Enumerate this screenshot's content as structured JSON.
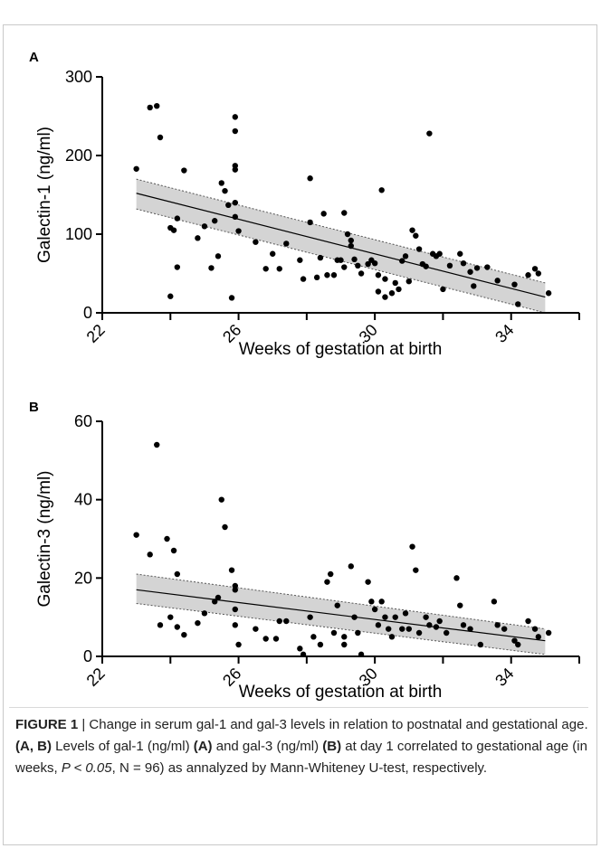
{
  "chart_data": [
    {
      "panel": "A",
      "type": "scatter",
      "xlabel": "Weeks of gestation at birth",
      "ylabel": "Galectin-1 (ng/ml)",
      "xlim": [
        22,
        36
      ],
      "ylim": [
        0,
        300
      ],
      "xticks": [
        "22",
        "26",
        "30",
        "34"
      ],
      "yticks": [
        "0",
        "100",
        "200",
        "300"
      ],
      "points": [
        [
          23.0,
          183
        ],
        [
          23.4,
          261
        ],
        [
          23.6,
          263
        ],
        [
          23.7,
          223
        ],
        [
          24.0,
          108
        ],
        [
          24.1,
          105
        ],
        [
          24.2,
          120
        ],
        [
          24.2,
          58
        ],
        [
          24.4,
          181
        ],
        [
          24.0,
          21
        ],
        [
          24.8,
          95
        ],
        [
          25.0,
          110
        ],
        [
          25.2,
          57
        ],
        [
          25.3,
          117
        ],
        [
          25.4,
          72
        ],
        [
          25.5,
          165
        ],
        [
          25.6,
          155
        ],
        [
          25.7,
          137
        ],
        [
          25.8,
          19
        ],
        [
          25.9,
          249
        ],
        [
          25.9,
          231
        ],
        [
          25.9,
          187
        ],
        [
          25.9,
          182
        ],
        [
          25.9,
          140
        ],
        [
          25.9,
          122
        ],
        [
          26.0,
          104
        ],
        [
          26.5,
          90
        ],
        [
          26.8,
          56
        ],
        [
          27.0,
          75
        ],
        [
          27.2,
          56
        ],
        [
          27.4,
          88
        ],
        [
          27.8,
          67
        ],
        [
          27.9,
          43
        ],
        [
          28.1,
          115
        ],
        [
          28.1,
          171
        ],
        [
          28.3,
          45
        ],
        [
          28.4,
          70
        ],
        [
          28.5,
          126
        ],
        [
          28.6,
          48
        ],
        [
          28.8,
          48
        ],
        [
          28.9,
          67
        ],
        [
          29.0,
          67
        ],
        [
          29.1,
          58
        ],
        [
          29.1,
          127
        ],
        [
          29.2,
          100
        ],
        [
          29.3,
          92
        ],
        [
          29.3,
          85
        ],
        [
          29.4,
          68
        ],
        [
          29.5,
          60
        ],
        [
          29.6,
          50
        ],
        [
          29.8,
          62
        ],
        [
          29.9,
          67
        ],
        [
          30.0,
          63
        ],
        [
          30.1,
          48
        ],
        [
          30.1,
          27
        ],
        [
          30.2,
          156
        ],
        [
          30.3,
          43
        ],
        [
          30.3,
          20
        ],
        [
          30.5,
          25
        ],
        [
          30.6,
          38
        ],
        [
          30.7,
          30
        ],
        [
          30.8,
          66
        ],
        [
          30.9,
          72
        ],
        [
          31.0,
          40
        ],
        [
          31.1,
          105
        ],
        [
          31.2,
          98
        ],
        [
          31.3,
          81
        ],
        [
          31.4,
          62
        ],
        [
          31.5,
          59
        ],
        [
          31.6,
          228
        ],
        [
          31.7,
          75
        ],
        [
          31.8,
          72
        ],
        [
          31.9,
          75
        ],
        [
          32.0,
          30
        ],
        [
          32.2,
          60
        ],
        [
          32.5,
          75
        ],
        [
          32.6,
          63
        ],
        [
          32.8,
          52
        ],
        [
          32.9,
          34
        ],
        [
          33.0,
          57
        ],
        [
          33.3,
          58
        ],
        [
          33.6,
          41
        ],
        [
          34.1,
          36
        ],
        [
          34.2,
          11
        ],
        [
          34.5,
          48
        ],
        [
          34.7,
          56
        ],
        [
          34.8,
          50
        ],
        [
          35.1,
          25
        ]
      ],
      "fit_line": [
        [
          23.0,
          152
        ],
        [
          35.0,
          20
        ]
      ],
      "ci_band": {
        "x": [
          23.0,
          35.0
        ],
        "upper": [
          170,
          38
        ],
        "lower": [
          132,
          0
        ]
      }
    },
    {
      "panel": "B",
      "type": "scatter",
      "xlabel": "Weeks of gestation at birth",
      "ylabel": "Galectin-3 (ng/ml)",
      "xlim": [
        22,
        36
      ],
      "ylim": [
        0,
        60
      ],
      "xticks": [
        "22",
        "26",
        "30",
        "34"
      ],
      "yticks": [
        "0",
        "20",
        "40",
        "60"
      ],
      "points": [
        [
          23.0,
          31
        ],
        [
          23.4,
          26
        ],
        [
          23.6,
          54
        ],
        [
          23.7,
          8
        ],
        [
          23.9,
          30
        ],
        [
          24.1,
          27
        ],
        [
          24.2,
          21
        ],
        [
          24.0,
          10
        ],
        [
          24.2,
          7.5
        ],
        [
          24.4,
          5.5
        ],
        [
          24.8,
          8.5
        ],
        [
          25.0,
          11
        ],
        [
          25.3,
          14
        ],
        [
          25.4,
          15
        ],
        [
          25.5,
          40
        ],
        [
          25.6,
          33
        ],
        [
          25.8,
          22
        ],
        [
          25.9,
          18
        ],
        [
          25.9,
          17
        ],
        [
          25.9,
          12
        ],
        [
          25.9,
          8
        ],
        [
          26.0,
          3
        ],
        [
          26.5,
          7
        ],
        [
          26.8,
          4.5
        ],
        [
          27.1,
          4.5
        ],
        [
          27.2,
          9
        ],
        [
          27.4,
          9
        ],
        [
          27.8,
          2
        ],
        [
          27.9,
          0.5
        ],
        [
          28.1,
          10
        ],
        [
          28.2,
          5
        ],
        [
          28.4,
          3
        ],
        [
          28.6,
          19
        ],
        [
          28.7,
          21
        ],
        [
          28.8,
          6
        ],
        [
          28.9,
          13
        ],
        [
          29.1,
          5
        ],
        [
          29.1,
          3
        ],
        [
          29.3,
          23
        ],
        [
          29.4,
          10
        ],
        [
          29.5,
          6
        ],
        [
          29.6,
          0.5
        ],
        [
          29.8,
          19
        ],
        [
          29.9,
          14
        ],
        [
          30.0,
          12
        ],
        [
          30.1,
          8
        ],
        [
          30.2,
          14
        ],
        [
          30.3,
          10
        ],
        [
          30.4,
          7
        ],
        [
          30.5,
          5
        ],
        [
          30.6,
          10
        ],
        [
          30.8,
          7
        ],
        [
          30.9,
          11
        ],
        [
          31.0,
          7
        ],
        [
          31.1,
          28
        ],
        [
          31.2,
          22
        ],
        [
          31.3,
          6
        ],
        [
          31.5,
          10
        ],
        [
          31.6,
          8
        ],
        [
          31.8,
          7.5
        ],
        [
          31.9,
          9
        ],
        [
          32.1,
          6
        ],
        [
          32.4,
          20
        ],
        [
          32.5,
          13
        ],
        [
          32.6,
          8
        ],
        [
          32.8,
          7
        ],
        [
          33.1,
          3
        ],
        [
          33.5,
          14
        ],
        [
          33.6,
          8
        ],
        [
          33.8,
          7
        ],
        [
          34.1,
          4
        ],
        [
          34.2,
          3
        ],
        [
          34.5,
          9
        ],
        [
          34.7,
          7
        ],
        [
          34.8,
          5
        ],
        [
          35.1,
          6
        ]
      ],
      "fit_line": [
        [
          23.0,
          17
        ],
        [
          35.0,
          4
        ]
      ],
      "ci_band": {
        "x": [
          23.0,
          35.0
        ],
        "upper": [
          21,
          7
        ],
        "lower": [
          13.5,
          0.5
        ]
      }
    }
  ],
  "panels": [
    {
      "letter": "A",
      "ylabel": "Galectin-1 (ng/ml)",
      "xlabel": "Weeks of gestation at birth"
    },
    {
      "letter": "B",
      "ylabel": "Galectin-3 (ng/ml)",
      "xlabel": "Weeks of gestation at birth"
    }
  ],
  "caption": {
    "label": "FIGURE 1",
    "sep": " | ",
    "t1": "Change in serum gal-1 and gal-3 levels in relation to postnatal and gestational age. ",
    "b1": "(A, B)",
    "t2": " Levels of gal-1 (ng/ml) ",
    "b2": "(A)",
    "t3": " and gal-3 (ng/ml) ",
    "b3": "(B)",
    "t4": " at day 1 correlated to gestational age (in weeks, ",
    "i1": "P < 0.05",
    "t5": ", N = 96) as annalyzed by Mann-Whiteney U-test, respectively."
  },
  "colors": {
    "point": "#000000",
    "band": "#d4d4d4",
    "axis": "#000000"
  }
}
